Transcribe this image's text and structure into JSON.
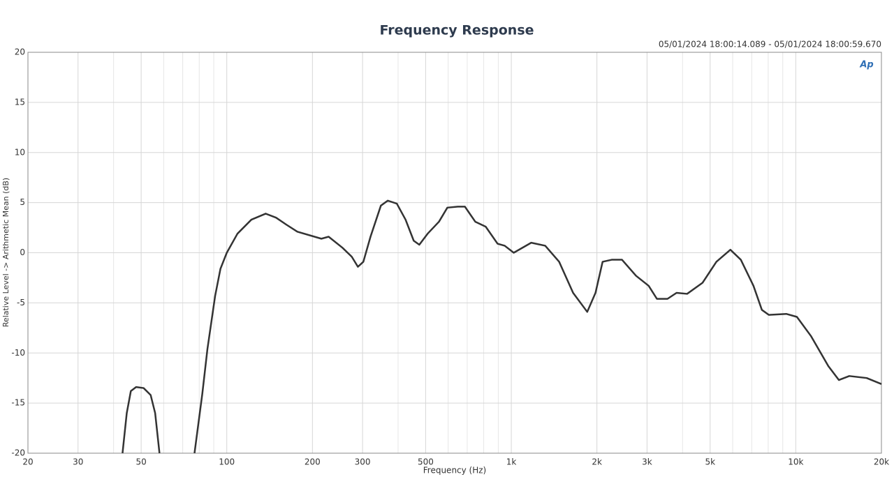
{
  "chart_data": {
    "type": "line",
    "title": "Frequency Response",
    "subtitle": "05/01/2024 18:00:14.089 - 05/01/2024 18:00:59.670",
    "logo": "Ap",
    "xlabel": "Frequency (Hz)",
    "ylabel": "Relative Level -> Arithmetic Mean (dB)",
    "xscale": "log",
    "grid": true,
    "color": "#333333",
    "xlim": [
      20,
      20000
    ],
    "ylim": [
      -20,
      20
    ],
    "xticks": [
      20,
      30,
      50,
      100,
      200,
      300,
      500,
      {
        "value": 1000,
        "label": "1k"
      },
      {
        "value": 2000,
        "label": "2k"
      },
      {
        "value": 3000,
        "label": "3k"
      },
      {
        "value": 5000,
        "label": "5k"
      },
      {
        "value": 10000,
        "label": "10k"
      },
      {
        "value": 20000,
        "label": "20k"
      }
    ],
    "xminor": [
      40,
      60,
      70,
      80,
      90,
      400,
      600,
      700,
      800,
      900,
      4000,
      6000,
      7000,
      8000,
      9000
    ],
    "yticks": [
      -20,
      -15,
      -10,
      -5,
      0,
      5,
      10,
      15,
      20
    ],
    "x": [
      43,
      44.5,
      46,
      48,
      51,
      54,
      56,
      58,
      65,
      77,
      82,
      85.5,
      91,
      95,
      100,
      109,
      122,
      137,
      149,
      162,
      177,
      215,
      228,
      255,
      275,
      289,
      302,
      320,
      348,
      368,
      396,
      425,
      454,
      475,
      508,
      557,
      596,
      649,
      687,
      747,
      813,
      895,
      948,
      1020,
      1175,
      1316,
      1473,
      1649,
      1849,
      1977,
      2094,
      2254,
      2450,
      2745,
      3040,
      3250,
      3540,
      3810,
      4150,
      4700,
      5260,
      5890,
      6410,
      7100,
      7600,
      8040,
      9260,
      10090,
      11300,
      13010,
      14170,
      15420,
      17750,
      20000
    ],
    "values": [
      -20,
      -16,
      -13.8,
      -13.4,
      -13.5,
      -14.2,
      -16,
      -20,
      null,
      -20,
      -14.1,
      -9.6,
      -4.3,
      -1.6,
      0,
      1.9,
      3.3,
      3.9,
      3.5,
      2.8,
      2.1,
      1.4,
      1.6,
      0.5,
      -0.4,
      -1.4,
      -0.9,
      1.6,
      4.7,
      5.2,
      4.9,
      3.3,
      1.2,
      0.8,
      1.9,
      3.1,
      4.5,
      4.6,
      4.6,
      3.1,
      2.6,
      0.9,
      0.7,
      0,
      1.0,
      0.7,
      -0.9,
      -4.0,
      -5.9,
      -4.0,
      -0.9,
      -0.7,
      -0.7,
      -2.3,
      -3.3,
      -4.6,
      -4.6,
      -4.0,
      -4.1,
      -3.0,
      -0.9,
      0.3,
      -0.7,
      -3.3,
      -5.7,
      -6.2,
      -6.1,
      -6.4,
      -8.3,
      -11.3,
      -12.7,
      -12.3,
      -12.5,
      -13.1
    ]
  }
}
